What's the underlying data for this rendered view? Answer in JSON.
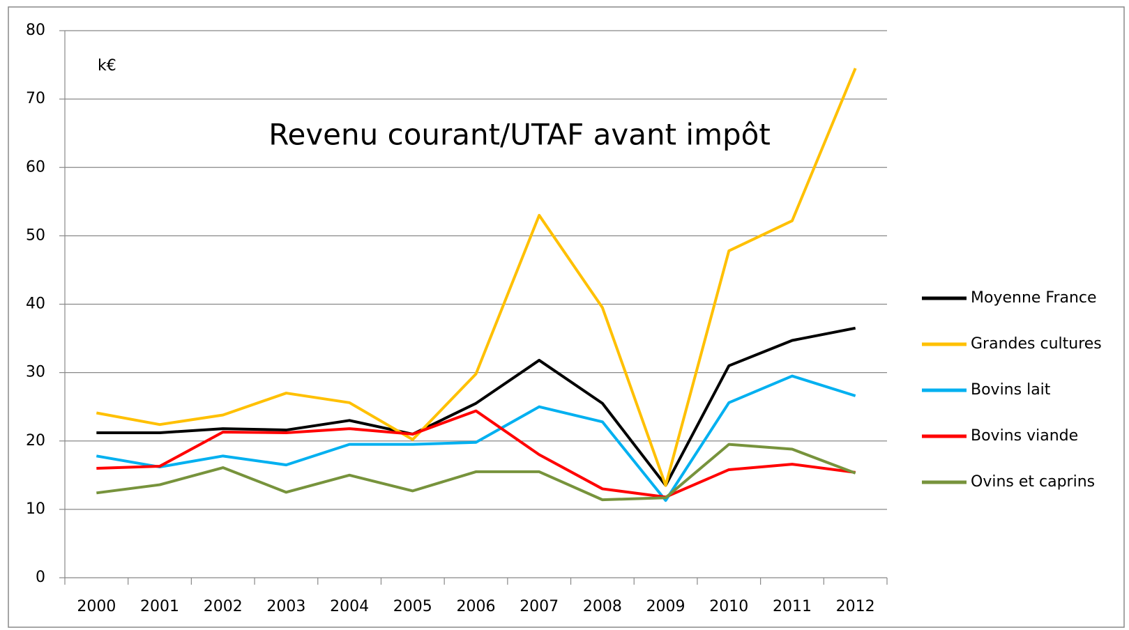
{
  "chart_data": {
    "type": "line",
    "title": "Revenu courant/UTAF avant impôt",
    "unit_label": "k€",
    "categories": [
      "2000",
      "2001",
      "2002",
      "2003",
      "2004",
      "2005",
      "2006",
      "2007",
      "2008",
      "2009",
      "2010",
      "2011",
      "2012"
    ],
    "series": [
      {
        "name": "Moyenne France",
        "color": "#000000",
        "values": [
          21.2,
          21.2,
          21.8,
          21.6,
          23.0,
          21.0,
          25.5,
          31.8,
          25.5,
          13.5,
          31.0,
          34.7,
          36.5
        ]
      },
      {
        "name": "Grandes cultures",
        "color": "#ffc000",
        "values": [
          24.1,
          22.4,
          23.8,
          27.0,
          25.6,
          20.2,
          29.8,
          53.0,
          39.5,
          13.5,
          47.8,
          52.2,
          74.5
        ]
      },
      {
        "name": "Bovins lait",
        "color": "#00b0f0",
        "values": [
          17.8,
          16.2,
          17.8,
          16.5,
          19.5,
          19.5,
          19.8,
          25.0,
          22.8,
          11.3,
          25.6,
          29.5,
          26.6
        ]
      },
      {
        "name": "Bovins viande",
        "color": "#ff0000",
        "values": [
          16.0,
          16.3,
          21.3,
          21.2,
          21.8,
          21.0,
          24.4,
          18.0,
          13.0,
          11.8,
          15.8,
          16.6,
          15.4
        ]
      },
      {
        "name": "Ovins et caprins",
        "color": "#77933c",
        "values": [
          12.4,
          13.6,
          16.1,
          12.5,
          15.0,
          12.7,
          15.5,
          15.5,
          11.4,
          11.7,
          19.5,
          18.8,
          15.3
        ]
      }
    ],
    "ylim": [
      0,
      80
    ],
    "yticks": [
      0,
      10,
      20,
      30,
      40,
      50,
      60,
      70,
      80
    ],
    "grid": true,
    "legend": "right"
  }
}
